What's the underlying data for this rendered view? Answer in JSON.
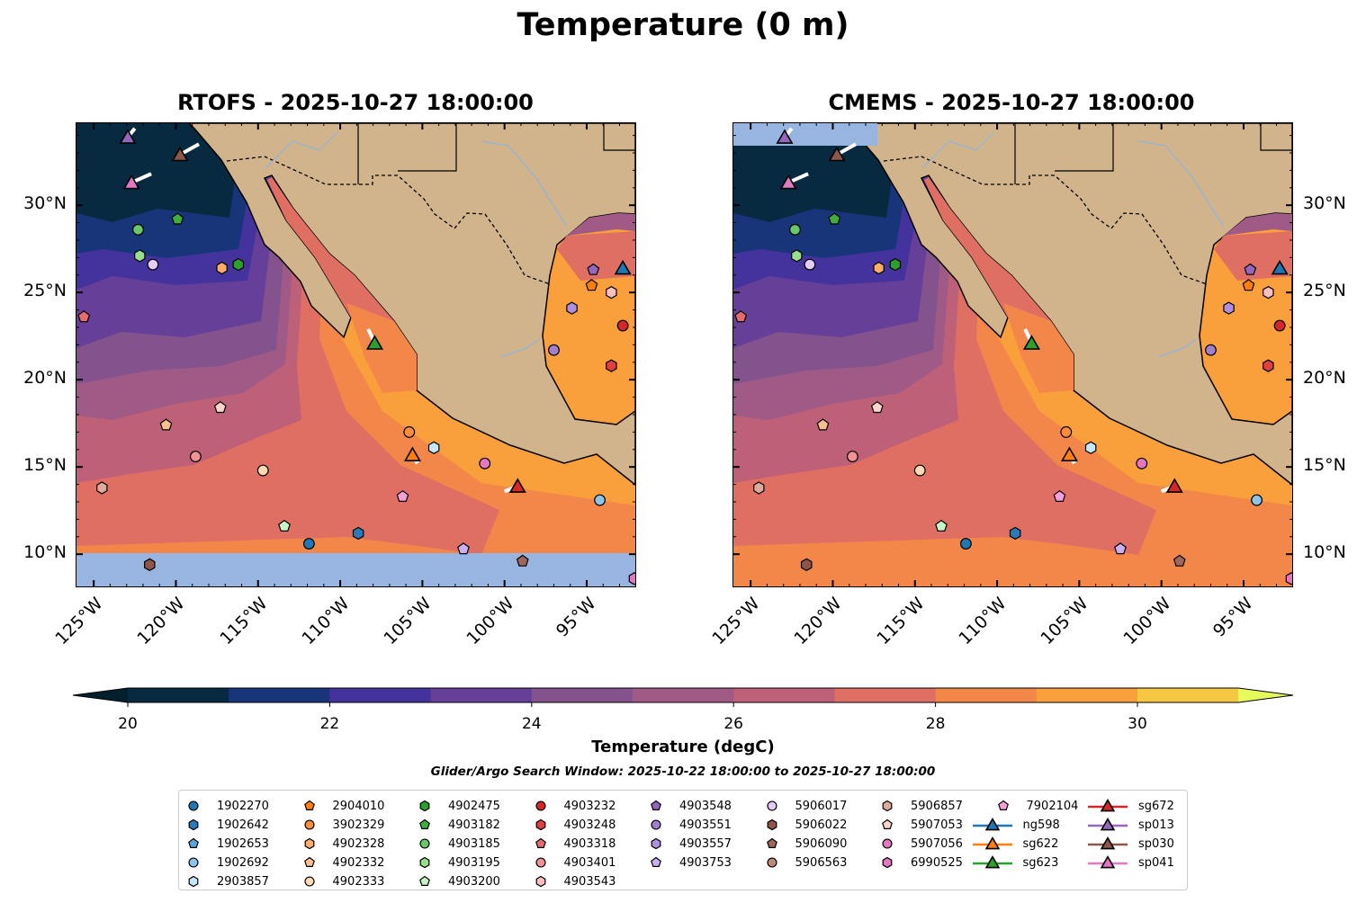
{
  "title": "Temperature (0 m)",
  "panels": [
    {
      "title": "RTOFS - 2025-10-27 18:00:00",
      "missing_region": "south"
    },
    {
      "title": "CMEMS - 2025-10-27 18:00:00",
      "missing_region": "north"
    }
  ],
  "axes": {
    "lat_ticks": [
      {
        "lat": 30,
        "label": "30°N"
      },
      {
        "lat": 25,
        "label": "25°N"
      },
      {
        "lat": 20,
        "label": "20°N"
      },
      {
        "lat": 15,
        "label": "15°N"
      },
      {
        "lat": 10,
        "label": "10°N"
      }
    ],
    "lon_ticks": [
      {
        "lon": -125,
        "label": "125°W"
      },
      {
        "lon": -120,
        "label": "120°W"
      },
      {
        "lon": -115,
        "label": "115°W"
      },
      {
        "lon": -110,
        "label": "110°W"
      },
      {
        "lon": -105,
        "label": "105°W"
      },
      {
        "lon": -100,
        "label": "100°W"
      },
      {
        "lon": -95,
        "label": "95°W"
      }
    ]
  },
  "colorbar": {
    "label": "Temperature (degC)",
    "min": 20,
    "max": 31,
    "ticks": [
      {
        "v": 20,
        "label": "20"
      },
      {
        "v": 22,
        "label": "22"
      },
      {
        "v": 24,
        "label": "24"
      },
      {
        "v": 26,
        "label": "26"
      },
      {
        "v": 28,
        "label": "28"
      },
      {
        "v": 30,
        "label": "30"
      }
    ],
    "under_color": "#04202f",
    "over_color": "#e8fa5b",
    "colors": [
      "#072a40",
      "#18357a",
      "#44339d",
      "#663f98",
      "#84528d",
      "#a05a86",
      "#be6078",
      "#e06f63",
      "#f3874a",
      "#f9a03c",
      "#f5c742"
    ]
  },
  "colors": {
    "land": "#d2b48c",
    "missing": "#98b4e0",
    "river": "#8fb4dc"
  },
  "subtitle": "Glider/Argo Search Window: 2025-10-22 18:00:00 to 2025-10-27 18:00:00",
  "legend": {
    "columns": [
      [
        {
          "id": "1902270",
          "marker": "circle",
          "color": "#1f77b4"
        },
        {
          "id": "1902642",
          "marker": "hexagon",
          "color": "#2a7ab9"
        },
        {
          "id": "1902653",
          "marker": "pentagon",
          "color": "#5ba3d9"
        },
        {
          "id": "1902692",
          "marker": "circle",
          "color": "#8dc4ea"
        },
        {
          "id": "2903857",
          "marker": "hexagon",
          "color": "#c6e7fb"
        }
      ],
      [
        {
          "id": "2904010",
          "marker": "pentagon",
          "color": "#ff7f0e"
        },
        {
          "id": "3902329",
          "marker": "circle",
          "color": "#fd8d3c"
        },
        {
          "id": "4902328",
          "marker": "hexagon",
          "color": "#fdae6b"
        },
        {
          "id": "4902332",
          "marker": "pentagon",
          "color": "#fdbf90"
        },
        {
          "id": "4902333",
          "marker": "circle",
          "color": "#fdd9b5"
        }
      ],
      [
        {
          "id": "4902475",
          "marker": "hexagon",
          "color": "#2ca02c"
        },
        {
          "id": "4903182",
          "marker": "pentagon",
          "color": "#3fae3f"
        },
        {
          "id": "4903185",
          "marker": "circle",
          "color": "#67c967"
        },
        {
          "id": "4903195",
          "marker": "hexagon",
          "color": "#98df8a"
        },
        {
          "id": "4903200",
          "marker": "pentagon",
          "color": "#c7f5c5"
        }
      ],
      [
        {
          "id": "4903232",
          "marker": "circle",
          "color": "#d62728"
        },
        {
          "id": "4903248",
          "marker": "hexagon",
          "color": "#e04040"
        },
        {
          "id": "4903318",
          "marker": "pentagon",
          "color": "#e76b6b"
        },
        {
          "id": "4903401",
          "marker": "circle",
          "color": "#f29393"
        },
        {
          "id": "4903543",
          "marker": "hexagon",
          "color": "#fcbfbf"
        }
      ],
      [
        {
          "id": "4903548",
          "marker": "pentagon",
          "color": "#9467bd"
        },
        {
          "id": "4903551",
          "marker": "circle",
          "color": "#a27fd0"
        },
        {
          "id": "4903557",
          "marker": "hexagon",
          "color": "#b08fe0"
        },
        {
          "id": "4903753",
          "marker": "pentagon",
          "color": "#c9b0f0"
        }
      ],
      [
        {
          "id": "5906017",
          "marker": "circle",
          "color": "#e3cdf8"
        },
        {
          "id": "5906022",
          "marker": "hexagon",
          "color": "#8c564b"
        },
        {
          "id": "5906090",
          "marker": "pentagon",
          "color": "#a0665a"
        },
        {
          "id": "5906563",
          "marker": "circle",
          "color": "#c08a7a"
        }
      ],
      [
        {
          "id": "5906857",
          "marker": "hexagon",
          "color": "#e0aa9a"
        },
        {
          "id": "5907053",
          "marker": "pentagon",
          "color": "#fbd5cc"
        },
        {
          "id": "5907056",
          "marker": "circle",
          "color": "#e377c2"
        },
        {
          "id": "6990525",
          "marker": "hexagon",
          "color": "#e377c2"
        }
      ],
      [
        {
          "id": "7902104",
          "marker": "pentagon",
          "color": "#f39fd8"
        },
        {
          "id": "ng598",
          "marker": "triangle",
          "color": "#1f77b4"
        },
        {
          "id": "sg622",
          "marker": "triangle",
          "color": "#ff7f0e"
        },
        {
          "id": "sg623",
          "marker": "triangle",
          "color": "#2ca02c"
        }
      ],
      [
        {
          "id": "sg672",
          "marker": "triangle",
          "color": "#d62728"
        },
        {
          "id": "sp013",
          "marker": "triangle",
          "color": "#9467bd"
        },
        {
          "id": "sp030",
          "marker": "triangle",
          "color": "#8c564b"
        },
        {
          "id": "sp041",
          "marker": "triangle",
          "color": "#e377c2"
        }
      ]
    ]
  },
  "observations": [
    {
      "id": "sp013",
      "lon": -122.93,
      "lat": 33.9,
      "track": [
        -122.5,
        34.4
      ]
    },
    {
      "id": "sp030",
      "lon": -119.75,
      "lat": 32.9,
      "track": [
        -118.6,
        33.5
      ]
    },
    {
      "id": "sp041",
      "lon": -122.7,
      "lat": 31.3,
      "track": [
        -121.5,
        31.8
      ]
    },
    {
      "id": "4903182",
      "lon": -119.9,
      "lat": 29.2
    },
    {
      "id": "4903185",
      "lon": -122.3,
      "lat": 28.6
    },
    {
      "id": "4903195",
      "lon": -122.2,
      "lat": 27.1
    },
    {
      "id": "5906017",
      "lon": -121.4,
      "lat": 26.6
    },
    {
      "id": "4902328",
      "lon": -117.2,
      "lat": 26.4
    },
    {
      "id": "4902475",
      "lon": -116.2,
      "lat": 26.6
    },
    {
      "id": "4903318",
      "lon": -125.6,
      "lat": 23.6
    },
    {
      "id": "sg623",
      "lon": -107.9,
      "lat": 22.1,
      "track": [
        -108.3,
        22.9
      ]
    },
    {
      "id": "4903548",
      "lon": -94.6,
      "lat": 26.3
    },
    {
      "id": "ng598",
      "lon": -92.8,
      "lat": 26.4
    },
    {
      "id": "2904010",
      "lon": -94.7,
      "lat": 25.4
    },
    {
      "id": "4903543",
      "lon": -93.5,
      "lat": 25.0
    },
    {
      "id": "4903557",
      "lon": -95.9,
      "lat": 24.1
    },
    {
      "id": "4903232",
      "lon": -92.8,
      "lat": 23.1
    },
    {
      "id": "4903551",
      "lon": -97.0,
      "lat": 21.7
    },
    {
      "id": "4903248",
      "lon": -93.5,
      "lat": 20.8
    },
    {
      "id": "5907053",
      "lon": -117.3,
      "lat": 18.4
    },
    {
      "id": "4902332",
      "lon": -120.6,
      "lat": 17.4
    },
    {
      "id": "3902329",
      "lon": -105.8,
      "lat": 17.0
    },
    {
      "id": "sg622",
      "lon": -105.6,
      "lat": 15.7,
      "track": [
        -105.3,
        15.2
      ]
    },
    {
      "id": "2903857",
      "lon": -104.3,
      "lat": 16.1
    },
    {
      "id": "5907056",
      "lon": -101.2,
      "lat": 15.2
    },
    {
      "id": "4903401",
      "lon": -118.8,
      "lat": 15.6
    },
    {
      "id": "4902333",
      "lon": -114.7,
      "lat": 14.8
    },
    {
      "id": "sg672",
      "lon": -99.2,
      "lat": 13.9,
      "track": [
        -100.0,
        13.6
      ]
    },
    {
      "id": "5906857",
      "lon": -124.5,
      "lat": 13.8
    },
    {
      "id": "7902104",
      "lon": -106.2,
      "lat": 13.3
    },
    {
      "id": "1902692",
      "lon": -94.2,
      "lat": 13.1
    },
    {
      "id": "4903200",
      "lon": -113.4,
      "lat": 11.6
    },
    {
      "id": "1902642",
      "lon": -108.9,
      "lat": 11.2
    },
    {
      "id": "1902270",
      "lon": -111.9,
      "lat": 10.6
    },
    {
      "id": "4903753",
      "lon": -102.5,
      "lat": 10.3
    },
    {
      "id": "5906022",
      "lon": -121.6,
      "lat": 9.4
    },
    {
      "id": "5906090",
      "lon": -98.9,
      "lat": 9.6
    },
    {
      "id": "6990525",
      "lon": -92.1,
      "lat": 8.6
    }
  ]
}
